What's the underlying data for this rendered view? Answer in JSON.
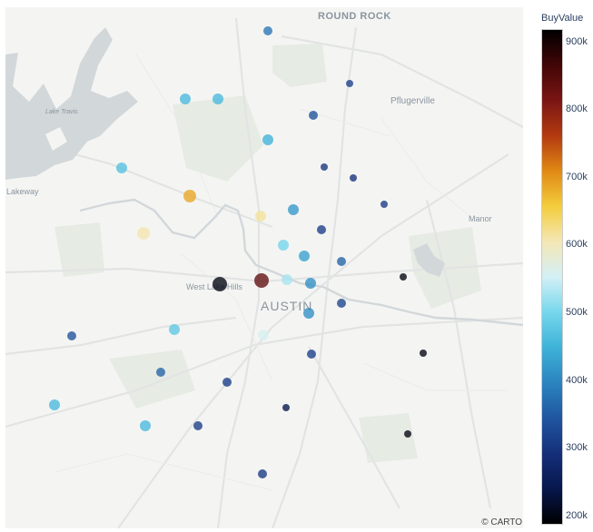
{
  "map": {
    "places": {
      "round_rock": "ROUND ROCK",
      "pflugerville": "Pflugerville",
      "lake_travis": "Lake Travis",
      "lakeway": "Lakeway",
      "manor": "Manor",
      "west_lake_hills": "West Lake Hills",
      "austin": "AUSTIN"
    },
    "attribution": "© CARTO",
    "colors": {
      "land": "#f4f5f3",
      "water": "#d2d7da",
      "road": "#e2e4e4",
      "park": "#e6ebe4"
    }
  },
  "colorbar": {
    "title": "BuyValue",
    "ticks": [
      "900k",
      "800k",
      "700k",
      "600k",
      "500k",
      "400k",
      "300k",
      "200k"
    ],
    "range": [
      190000,
      920000
    ],
    "stops": [
      "#000000",
      "#420606",
      "#7a1514",
      "#b33a10",
      "#e08915",
      "#f3cd3c",
      "#f4e7b5",
      "#d4f0f6",
      "#76d7ec",
      "#3eb2d8",
      "#2b84bf",
      "#1f569f",
      "#152f7a",
      "#07174d",
      "#000000"
    ]
  },
  "chart_data": {
    "type": "scatter",
    "title": "",
    "points": [
      {
        "value": 380000
      },
      {
        "value": 315000
      },
      {
        "value": 340000
      },
      {
        "value": 460000
      },
      {
        "value": 460000
      },
      {
        "value": 450000
      },
      {
        "value": 470000
      },
      {
        "value": 300000
      },
      {
        "value": 295000
      },
      {
        "value": 690000
      },
      {
        "value": 305000
      },
      {
        "value": 620000
      },
      {
        "value": 420000
      },
      {
        "value": 610000
      },
      {
        "value": 310000
      },
      {
        "value": 500000
      },
      {
        "value": 430000
      },
      {
        "value": 360000
      },
      {
        "value": 200000
      },
      {
        "value": 530000
      },
      {
        "value": 410000
      },
      {
        "value": 200000
      },
      {
        "value": 840000
      },
      {
        "value": 320000
      },
      {
        "value": 410000
      },
      {
        "value": 480000
      },
      {
        "value": 560000
      },
      {
        "value": 340000
      },
      {
        "value": 315000
      },
      {
        "value": 200000
      },
      {
        "value": 360000
      },
      {
        "value": 310000
      },
      {
        "value": 240000
      },
      {
        "value": 460000
      },
      {
        "value": 460000
      },
      {
        "value": 310000
      },
      {
        "value": 200000
      },
      {
        "value": 305000
      }
    ]
  }
}
